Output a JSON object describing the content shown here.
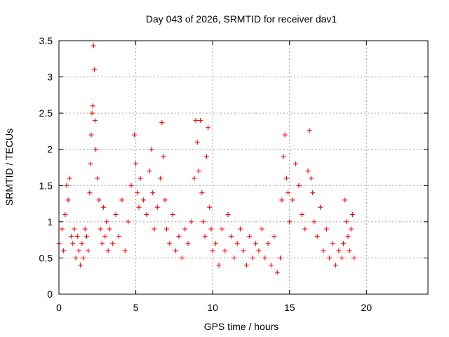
{
  "chart_data": {
    "type": "scatter",
    "title": "Day 043 of 2026, SRMTID for receiver dav1",
    "xlabel": "GPS time / hours",
    "ylabel": "SRMTID / TECUs",
    "xlim": [
      0,
      24
    ],
    "ylim": [
      0,
      3.5
    ],
    "x_ticks": [
      0,
      5,
      10,
      15,
      20
    ],
    "x_tick_labels": [
      "0",
      "5",
      "10",
      "15",
      "20"
    ],
    "y_ticks": [
      0,
      0.5,
      1,
      1.5,
      2,
      2.5,
      3,
      3.5
    ],
    "y_tick_labels": [
      "0",
      "0.5",
      "1",
      "1.5",
      "2",
      "2.5",
      "3",
      "3.5"
    ],
    "grid": true,
    "marker": "+",
    "colors": {
      "series": "#ff0000",
      "grid": "#a0a0a0",
      "axis": "#000000"
    },
    "series": [
      {
        "name": "SRMTID",
        "x": [
          0.0,
          0.2,
          0.3,
          0.4,
          0.5,
          0.6,
          0.7,
          0.8,
          0.9,
          1.0,
          1.1,
          1.2,
          1.3,
          1.4,
          1.5,
          1.6,
          1.7,
          1.8,
          1.9,
          2.0,
          2.05,
          2.1,
          2.15,
          2.2,
          2.25,
          2.3,
          2.35,
          2.4,
          2.5,
          2.6,
          2.7,
          2.8,
          2.9,
          3.0,
          3.1,
          3.2,
          3.3,
          3.5,
          3.7,
          3.9,
          4.1,
          4.3,
          4.5,
          4.7,
          4.9,
          5.0,
          5.1,
          5.2,
          5.3,
          5.5,
          5.7,
          5.9,
          6.0,
          6.1,
          6.2,
          6.4,
          6.6,
          6.7,
          6.8,
          6.9,
          7.0,
          7.2,
          7.4,
          7.6,
          7.8,
          8.0,
          8.2,
          8.4,
          8.6,
          8.8,
          8.9,
          9.0,
          9.1,
          9.2,
          9.3,
          9.4,
          9.5,
          9.6,
          9.7,
          9.8,
          9.9,
          10.0,
          10.2,
          10.4,
          10.6,
          10.8,
          11.0,
          11.2,
          11.4,
          11.6,
          11.8,
          12.0,
          12.2,
          12.4,
          12.6,
          12.8,
          13.0,
          13.2,
          13.4,
          13.6,
          13.8,
          14.0,
          14.2,
          14.4,
          14.5,
          14.6,
          14.7,
          14.8,
          14.9,
          15.0,
          15.2,
          15.4,
          15.6,
          15.8,
          16.0,
          16.2,
          16.3,
          16.4,
          16.5,
          16.6,
          16.8,
          17.0,
          17.2,
          17.4,
          17.6,
          17.8,
          18.0,
          18.2,
          18.4,
          18.5,
          18.6,
          18.7,
          18.8,
          18.9,
          19.0,
          19.1,
          19.2
        ],
        "y": [
          0.7,
          0.9,
          0.6,
          1.1,
          1.5,
          1.3,
          1.6,
          0.8,
          0.7,
          0.9,
          0.5,
          0.8,
          0.6,
          0.4,
          0.7,
          0.5,
          0.9,
          0.8,
          0.6,
          1.4,
          1.8,
          2.2,
          2.5,
          2.6,
          3.43,
          3.1,
          2.4,
          2.0,
          1.6,
          1.3,
          0.9,
          0.7,
          1.2,
          0.8,
          1.0,
          0.6,
          0.9,
          0.7,
          1.1,
          0.8,
          1.3,
          0.6,
          1.0,
          1.5,
          2.2,
          1.8,
          1.4,
          1.2,
          1.6,
          1.3,
          1.1,
          1.7,
          2.0,
          1.4,
          0.9,
          1.2,
          1.6,
          2.37,
          1.9,
          1.3,
          0.9,
          0.7,
          1.1,
          0.6,
          0.8,
          0.5,
          0.9,
          0.7,
          1.0,
          1.6,
          2.4,
          2.1,
          1.7,
          2.4,
          1.4,
          1.0,
          0.8,
          1.9,
          2.3,
          1.2,
          0.9,
          0.6,
          0.7,
          0.4,
          0.9,
          0.6,
          1.1,
          0.8,
          0.5,
          0.7,
          0.9,
          0.6,
          0.4,
          0.8,
          0.5,
          0.7,
          0.6,
          0.9,
          0.5,
          0.7,
          0.4,
          0.8,
          0.3,
          0.5,
          1.3,
          1.9,
          2.2,
          1.6,
          1.4,
          1.0,
          1.3,
          1.8,
          1.5,
          1.1,
          0.9,
          1.7,
          2.26,
          1.6,
          1.4,
          1.0,
          0.8,
          1.2,
          0.6,
          0.9,
          0.5,
          0.7,
          0.4,
          0.6,
          0.5,
          0.7,
          1.3,
          1.0,
          0.8,
          0.6,
          0.9,
          1.1,
          0.5
        ]
      }
    ]
  }
}
